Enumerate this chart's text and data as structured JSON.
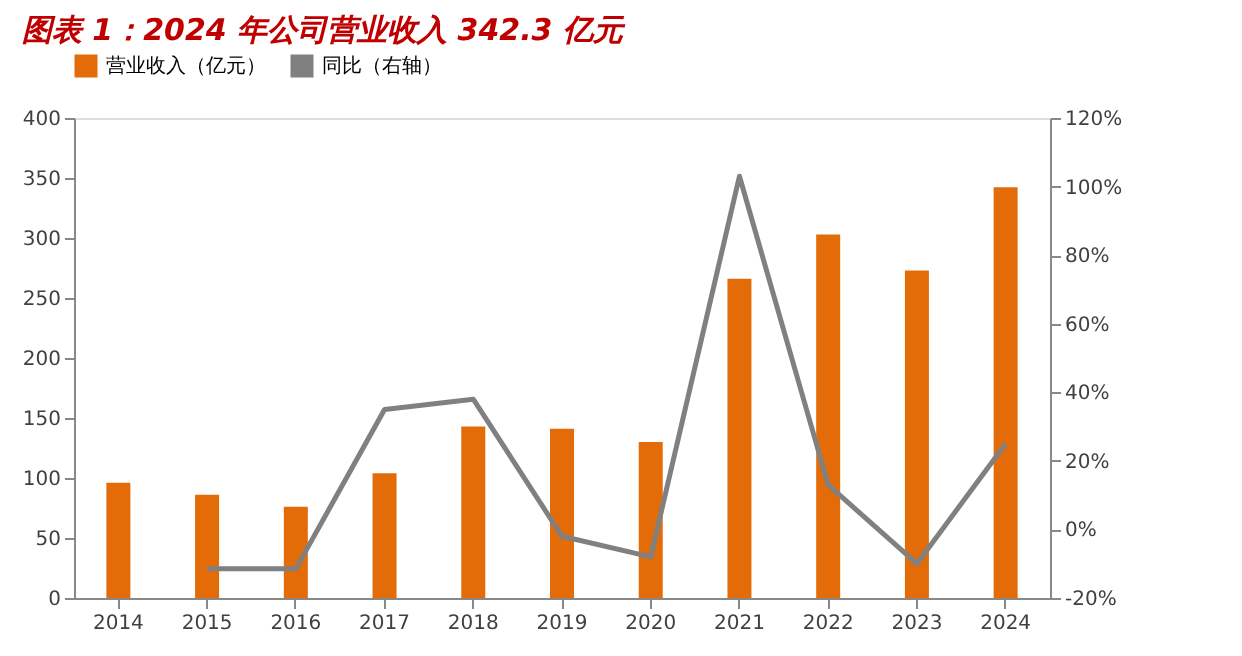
{
  "chart_data": {
    "type": "bar",
    "title": "图表 1：2024 年公司营业收入 342.3 亿元",
    "categories": [
      "2014",
      "2015",
      "2016",
      "2017",
      "2018",
      "2019",
      "2020",
      "2021",
      "2022",
      "2023",
      "2024"
    ],
    "series": [
      {
        "name": "营业收入（亿元）",
        "color": "#e36c09",
        "values": [
          96,
          86,
          76,
          104,
          143,
          141,
          130,
          266,
          303,
          273,
          342.3
        ]
      },
      {
        "name": "同比（右轴）",
        "type": "line",
        "axis": "y2",
        "color": "#808080",
        "values": [
          null,
          -11.5,
          -11.5,
          35,
          38,
          -2,
          -8,
          103,
          13,
          -10,
          25
        ]
      }
    ],
    "ylim": [
      0,
      400
    ],
    "yticks": [
      0,
      50,
      100,
      150,
      200,
      250,
      300,
      350,
      400
    ],
    "y2lim": [
      -20,
      120
    ],
    "y2ticks": [
      {
        "value": -20,
        "label": "-20%"
      },
      {
        "value": 0,
        "label": "0%"
      },
      {
        "value": 20,
        "label": "20%"
      },
      {
        "value": 40,
        "label": "40%"
      },
      {
        "value": 60,
        "label": "60%"
      },
      {
        "value": 80,
        "label": "80%"
      },
      {
        "value": 100,
        "label": "100%"
      },
      {
        "value": 120,
        "label": "120%"
      }
    ],
    "grid": false,
    "legend": "top",
    "marker": "none",
    "line_style": "solid"
  }
}
